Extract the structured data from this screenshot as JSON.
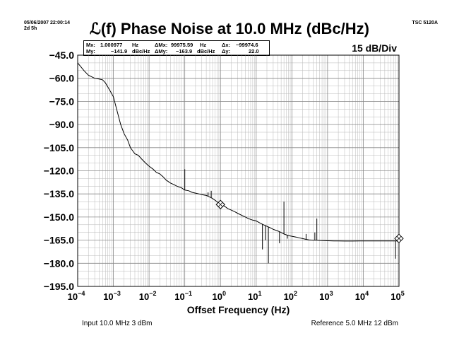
{
  "header": {
    "date": "05/06/2007 22:00:14",
    "elapsed": "2d 5h",
    "instrument": "TSC 5120A"
  },
  "markers": {
    "mx_label": "Mx:",
    "mx_value": "1.000977",
    "mx_unit": "Hz",
    "my_label": "My:",
    "my_value": "−141.9",
    "my_unit": "dBc/Hz",
    "dmx_label": "ΔMx:",
    "dmx_value": "99975.59",
    "dmx_unit": "Hz",
    "dmy_label": "ΔMy:",
    "dmy_value": "−163.9",
    "dmy_unit": "dBc/Hz",
    "dx_label": "Δx:",
    "dx_value": "−99974.6",
    "dy_label": "Δy:",
    "dy_value": "22.0"
  },
  "scale_label": "15 dB/Div",
  "footer": {
    "input": "Input 10.0 MHz 3 dBm",
    "reference": "Reference 5.0 MHz 12 dBm"
  },
  "colors": {
    "trace": "#000000",
    "grid": "#b8b8b8",
    "background": "#ffffff"
  },
  "chart_data": {
    "type": "line",
    "title": "ℒ(f) Phase Noise at 10.0 MHz (dBc/Hz)",
    "xlabel": "Offset Frequency (Hz)",
    "ylabel": "",
    "x_scale": "log",
    "xlim": [
      0.0001,
      100000
    ],
    "ylim": [
      -195,
      -45
    ],
    "grid": true,
    "ytick_labels": [
      "−45.0",
      "−60.0",
      "−75.0",
      "−90.0",
      "−105.0",
      "−120.0",
      "−135.0",
      "−150.0",
      "−165.0",
      "−180.0",
      "−195.0"
    ],
    "ytick_values": [
      -45,
      -60,
      -75,
      -90,
      -105,
      -120,
      -135,
      -150,
      -165,
      -180,
      -195
    ],
    "xtick_values": [
      0.0001,
      0.001,
      0.01,
      0.1,
      1,
      10,
      100,
      1000,
      10000,
      100000
    ],
    "xtick_exponents": [
      "−4",
      "−3",
      "−2",
      "−1",
      "0",
      "1",
      "2",
      "3",
      "4",
      "5"
    ],
    "xtick_base": "10",
    "series": [
      {
        "x": [
          0.0001,
          0.00015,
          0.0002,
          0.0003,
          0.0004,
          0.0005,
          0.0006,
          0.0008,
          0.001,
          0.0013,
          0.0016,
          0.002,
          0.0025,
          0.003,
          0.004,
          0.005,
          0.006,
          0.008,
          0.01,
          0.013,
          0.016,
          0.02,
          0.025,
          0.03,
          0.04,
          0.05,
          0.06,
          0.08,
          0.1,
          0.13,
          0.16,
          0.2,
          0.25,
          0.3,
          0.4,
          0.5,
          0.6,
          0.8,
          1,
          1.3,
          1.6,
          2,
          2.5,
          3,
          4,
          5,
          6,
          8,
          10,
          13,
          16,
          20,
          25,
          30,
          40,
          50,
          60,
          80,
          100,
          130,
          160,
          200,
          250,
          300,
          400,
          500,
          600,
          800,
          1000,
          1500,
          2000,
          3000,
          5000,
          10000,
          20000,
          50000,
          100000
        ],
        "y": [
          -50,
          -55,
          -58,
          -60,
          -60.5,
          -61,
          -63,
          -68,
          -72,
          -82,
          -90,
          -96,
          -100,
          -105,
          -109,
          -110,
          -112,
          -115,
          -117,
          -119,
          -121,
          -122,
          -124,
          -126,
          -128,
          -129,
          -130,
          -131,
          -132.5,
          -133,
          -134,
          -134.5,
          -135,
          -135.5,
          -136,
          -137,
          -138,
          -140,
          -142,
          -143,
          -144.5,
          -145.5,
          -146.5,
          -147.5,
          -149,
          -150,
          -151,
          -152,
          -152.5,
          -154,
          -155,
          -156,
          -157,
          -158,
          -159,
          -160,
          -161,
          -162,
          -162.5,
          -163,
          -163.5,
          -164,
          -164.5,
          -164.8,
          -165,
          -165,
          -165.2,
          -165.3,
          -165.4,
          -165.5,
          -165.5,
          -165.6,
          -165.6,
          -165.5,
          -165.5,
          -165.5,
          -165.5
        ]
      }
    ],
    "spurs": [
      {
        "x": 0.1,
        "y": -119
      },
      {
        "x": 0.55,
        "y": -133
      },
      {
        "x": 0.45,
        "y": -134
      },
      {
        "x": 15,
        "y": -171
      },
      {
        "x": 18,
        "y": -165
      },
      {
        "x": 22,
        "y": -180
      },
      {
        "x": 45,
        "y": -167
      },
      {
        "x": 60,
        "y": -140
      },
      {
        "x": 75,
        "y": -164
      },
      {
        "x": 250,
        "y": -161
      },
      {
        "x": 500,
        "y": -151
      },
      {
        "x": 440,
        "y": -160
      },
      {
        "x": 80000,
        "y": -177
      }
    ],
    "marker_points": [
      {
        "x": 1.000977,
        "y": -141.9
      },
      {
        "x": 99975.59,
        "y": -163.9
      }
    ]
  }
}
